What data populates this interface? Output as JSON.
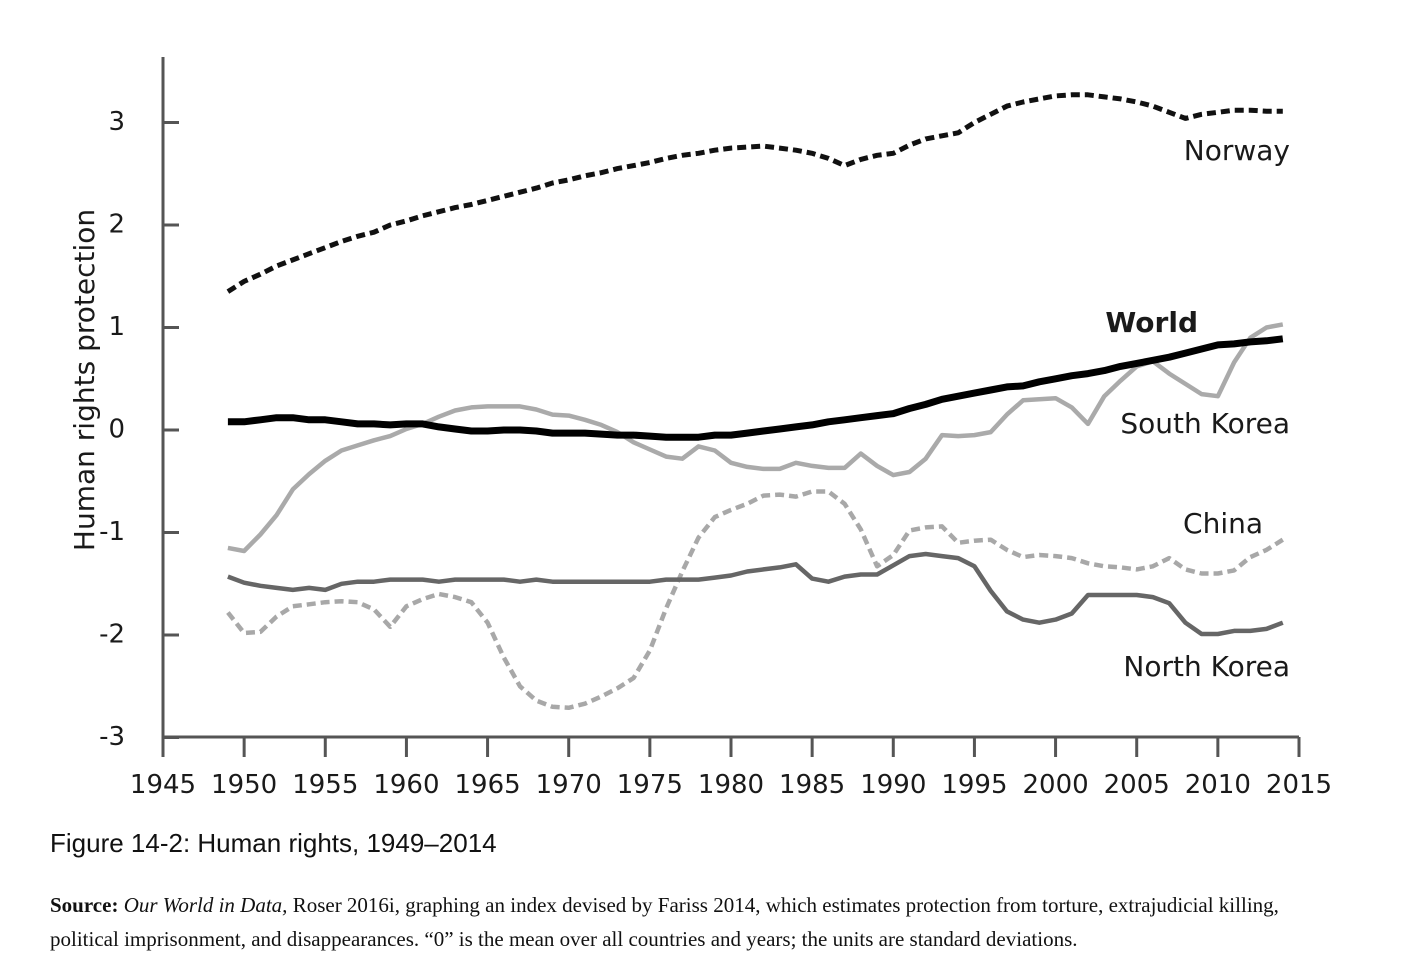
{
  "chart_data": {
    "type": "line",
    "ylabel": "Human rights protection",
    "xlabel": "",
    "xlim": [
      1945,
      2015
    ],
    "ylim": [
      -3,
      3.6
    ],
    "x_ticks": [
      1945,
      1950,
      1955,
      1960,
      1965,
      1970,
      1975,
      1980,
      1985,
      1990,
      1995,
      2000,
      2005,
      2010,
      2015
    ],
    "y_ticks": [
      {
        "value": 3,
        "label": "3"
      },
      {
        "value": 2,
        "label": "2"
      },
      {
        "value": 1,
        "label": "1"
      },
      {
        "value": 0,
        "label": "0"
      },
      {
        "value": -1,
        "label": "-1"
      },
      {
        "value": -2,
        "label": "-2"
      },
      {
        "value": -3,
        "label": "-3"
      }
    ],
    "grid": false,
    "series": [
      {
        "name": "Norway",
        "label": "Norway",
        "label_weight": "normal",
        "color": "#111111",
        "dash": "dashed",
        "width": 5,
        "x": [
          1949,
          1950,
          1951,
          1952,
          1953,
          1954,
          1955,
          1956,
          1957,
          1958,
          1959,
          1960,
          1961,
          1962,
          1963,
          1964,
          1965,
          1966,
          1967,
          1968,
          1969,
          1970,
          1971,
          1972,
          1973,
          1974,
          1975,
          1976,
          1977,
          1978,
          1979,
          1980,
          1981,
          1982,
          1983,
          1984,
          1985,
          1986,
          1987,
          1988,
          1989,
          1990,
          1991,
          1992,
          1993,
          1994,
          1995,
          1996,
          1997,
          1998,
          1999,
          2000,
          2001,
          2002,
          2003,
          2004,
          2005,
          2006,
          2007,
          2008,
          2009,
          2010,
          2011,
          2012,
          2013,
          2014
        ],
        "y": [
          1.35,
          1.45,
          1.52,
          1.6,
          1.66,
          1.72,
          1.78,
          1.84,
          1.89,
          1.93,
          2.0,
          2.04,
          2.09,
          2.13,
          2.17,
          2.2,
          2.24,
          2.28,
          2.32,
          2.36,
          2.41,
          2.44,
          2.48,
          2.51,
          2.55,
          2.58,
          2.61,
          2.65,
          2.68,
          2.7,
          2.73,
          2.75,
          2.76,
          2.77,
          2.75,
          2.73,
          2.7,
          2.65,
          2.58,
          2.64,
          2.68,
          2.7,
          2.78,
          2.84,
          2.87,
          2.9,
          3.0,
          3.08,
          3.16,
          3.2,
          3.23,
          3.26,
          3.27,
          3.27,
          3.25,
          3.23,
          3.2,
          3.16,
          3.1,
          3.04,
          3.08,
          3.1,
          3.12,
          3.12,
          3.11,
          3.11
        ]
      },
      {
        "name": "World",
        "label": "World",
        "label_weight": "bold",
        "color": "#000000",
        "dash": "solid",
        "width": 7,
        "x": [
          1949,
          1950,
          1951,
          1952,
          1953,
          1954,
          1955,
          1956,
          1957,
          1958,
          1959,
          1960,
          1961,
          1962,
          1963,
          1964,
          1965,
          1966,
          1967,
          1968,
          1969,
          1970,
          1971,
          1972,
          1973,
          1974,
          1975,
          1976,
          1977,
          1978,
          1979,
          1980,
          1981,
          1982,
          1983,
          1984,
          1985,
          1986,
          1987,
          1988,
          1989,
          1990,
          1991,
          1992,
          1993,
          1994,
          1995,
          1996,
          1997,
          1998,
          1999,
          2000,
          2001,
          2002,
          2003,
          2004,
          2005,
          2006,
          2007,
          2008,
          2009,
          2010,
          2011,
          2012,
          2013,
          2014
        ],
        "y": [
          0.08,
          0.08,
          0.1,
          0.12,
          0.12,
          0.1,
          0.1,
          0.08,
          0.06,
          0.06,
          0.05,
          0.06,
          0.06,
          0.03,
          0.01,
          -0.01,
          -0.01,
          0.0,
          0.0,
          -0.01,
          -0.03,
          -0.03,
          -0.03,
          -0.04,
          -0.05,
          -0.05,
          -0.06,
          -0.07,
          -0.07,
          -0.07,
          -0.05,
          -0.05,
          -0.03,
          -0.01,
          0.01,
          0.03,
          0.05,
          0.08,
          0.1,
          0.12,
          0.14,
          0.16,
          0.21,
          0.25,
          0.3,
          0.33,
          0.36,
          0.39,
          0.42,
          0.43,
          0.47,
          0.5,
          0.53,
          0.55,
          0.58,
          0.62,
          0.65,
          0.68,
          0.71,
          0.75,
          0.79,
          0.83,
          0.84,
          0.86,
          0.87,
          0.89
        ]
      },
      {
        "name": "South Korea",
        "label": "South Korea",
        "label_weight": "normal",
        "color": "#aaaaaa",
        "dash": "solid",
        "width": 4.5,
        "x": [
          1949,
          1950,
          1951,
          1952,
          1953,
          1954,
          1955,
          1956,
          1957,
          1958,
          1959,
          1960,
          1961,
          1962,
          1963,
          1964,
          1965,
          1966,
          1967,
          1968,
          1969,
          1970,
          1971,
          1972,
          1973,
          1974,
          1975,
          1976,
          1977,
          1978,
          1979,
          1980,
          1981,
          1982,
          1983,
          1984,
          1985,
          1986,
          1987,
          1988,
          1989,
          1990,
          1991,
          1992,
          1993,
          1994,
          1995,
          1996,
          1997,
          1998,
          1999,
          2000,
          2001,
          2002,
          2003,
          2004,
          2005,
          2006,
          2007,
          2008,
          2009,
          2010,
          2011,
          2012,
          2013,
          2014
        ],
        "y": [
          -1.15,
          -1.18,
          -1.02,
          -0.83,
          -0.58,
          -0.43,
          -0.3,
          -0.2,
          -0.15,
          -0.1,
          -0.06,
          0.01,
          0.06,
          0.13,
          0.19,
          0.22,
          0.23,
          0.23,
          0.23,
          0.2,
          0.15,
          0.14,
          0.1,
          0.05,
          -0.02,
          -0.12,
          -0.19,
          -0.26,
          -0.28,
          -0.16,
          -0.2,
          -0.32,
          -0.36,
          -0.38,
          -0.38,
          -0.32,
          -0.35,
          -0.37,
          -0.37,
          -0.23,
          -0.35,
          -0.44,
          -0.41,
          -0.28,
          -0.05,
          -0.06,
          -0.05,
          -0.02,
          0.15,
          0.29,
          0.3,
          0.31,
          0.22,
          0.06,
          0.33,
          0.48,
          0.62,
          0.67,
          0.55,
          0.45,
          0.35,
          0.33,
          0.66,
          0.9,
          1.0,
          1.03
        ]
      },
      {
        "name": "China",
        "label": "China",
        "label_weight": "normal",
        "color": "#a8a8a8",
        "dash": "dashed",
        "width": 4.5,
        "x": [
          1949,
          1950,
          1951,
          1952,
          1953,
          1954,
          1955,
          1956,
          1957,
          1958,
          1959,
          1960,
          1961,
          1962,
          1963,
          1964,
          1965,
          1966,
          1967,
          1968,
          1969,
          1970,
          1971,
          1972,
          1973,
          1974,
          1975,
          1976,
          1977,
          1978,
          1979,
          1980,
          1981,
          1982,
          1983,
          1984,
          1985,
          1986,
          1987,
          1988,
          1989,
          1990,
          1991,
          1992,
          1993,
          1994,
          1995,
          1996,
          1997,
          1998,
          1999,
          2000,
          2001,
          2002,
          2003,
          2004,
          2005,
          2006,
          2007,
          2008,
          2009,
          2010,
          2011,
          2012,
          2013,
          2014
        ],
        "y": [
          -1.78,
          -1.98,
          -1.97,
          -1.82,
          -1.72,
          -1.7,
          -1.68,
          -1.67,
          -1.68,
          -1.75,
          -1.92,
          -1.72,
          -1.65,
          -1.6,
          -1.63,
          -1.68,
          -1.88,
          -2.22,
          -2.5,
          -2.64,
          -2.7,
          -2.71,
          -2.67,
          -2.6,
          -2.52,
          -2.42,
          -2.15,
          -1.74,
          -1.38,
          -1.05,
          -0.85,
          -0.78,
          -0.72,
          -0.64,
          -0.63,
          -0.65,
          -0.6,
          -0.6,
          -0.72,
          -0.97,
          -1.33,
          -1.22,
          -0.98,
          -0.95,
          -0.94,
          -1.1,
          -1.08,
          -1.07,
          -1.17,
          -1.24,
          -1.22,
          -1.23,
          -1.25,
          -1.3,
          -1.33,
          -1.34,
          -1.36,
          -1.33,
          -1.25,
          -1.36,
          -1.4,
          -1.4,
          -1.37,
          -1.24,
          -1.17,
          -1.07
        ]
      },
      {
        "name": "North Korea",
        "label": "North Korea",
        "label_weight": "normal",
        "color": "#666666",
        "dash": "solid",
        "width": 4.5,
        "x": [
          1949,
          1950,
          1951,
          1952,
          1953,
          1954,
          1955,
          1956,
          1957,
          1958,
          1959,
          1960,
          1961,
          1962,
          1963,
          1964,
          1965,
          1966,
          1967,
          1968,
          1969,
          1970,
          1971,
          1972,
          1973,
          1974,
          1975,
          1976,
          1977,
          1978,
          1979,
          1980,
          1981,
          1982,
          1983,
          1984,
          1985,
          1986,
          1987,
          1988,
          1989,
          1990,
          1991,
          1992,
          1993,
          1994,
          1995,
          1996,
          1997,
          1998,
          1999,
          2000,
          2001,
          2002,
          2003,
          2004,
          2005,
          2006,
          2007,
          2008,
          2009,
          2010,
          2011,
          2012,
          2013,
          2014
        ],
        "y": [
          -1.43,
          -1.49,
          -1.52,
          -1.54,
          -1.56,
          -1.54,
          -1.56,
          -1.5,
          -1.48,
          -1.48,
          -1.46,
          -1.46,
          -1.46,
          -1.48,
          -1.46,
          -1.46,
          -1.46,
          -1.46,
          -1.48,
          -1.46,
          -1.48,
          -1.48,
          -1.48,
          -1.48,
          -1.48,
          -1.48,
          -1.48,
          -1.46,
          -1.46,
          -1.46,
          -1.44,
          -1.42,
          -1.38,
          -1.36,
          -1.34,
          -1.31,
          -1.45,
          -1.48,
          -1.43,
          -1.41,
          -1.41,
          -1.32,
          -1.23,
          -1.21,
          -1.23,
          -1.25,
          -1.33,
          -1.57,
          -1.77,
          -1.85,
          -1.88,
          -1.85,
          -1.79,
          -1.61,
          -1.61,
          -1.61,
          -1.61,
          -1.63,
          -1.69,
          -1.88,
          -1.99,
          -1.99,
          -1.96,
          -1.96,
          -1.94,
          -1.88
        ]
      }
    ]
  },
  "caption": "Figure 14-2: Human rights, 1949–2014",
  "source": {
    "label": "Source:",
    "italic": "Our World in Data,",
    "text": " Roser 2016i, graphing an index devised by Fariss 2014, which estimates protection from torture, extrajudicial killing, political imprisonment, and disappearances. “0” is the mean over all countries and years; the units are standard deviations."
  }
}
